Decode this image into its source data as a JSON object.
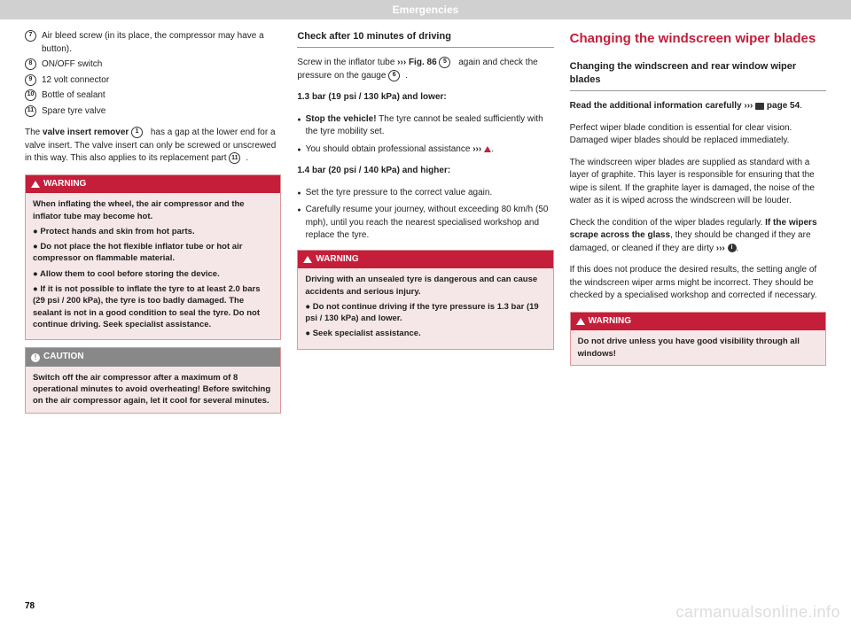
{
  "header": "Emergencies",
  "pageNumber": "78",
  "watermark": "carmanualsonline.info",
  "col1": {
    "items": [
      {
        "n": "7",
        "t": "Air bleed screw (in its place, the compressor may have a button)."
      },
      {
        "n": "8",
        "t": "ON/OFF switch"
      },
      {
        "n": "9",
        "t": "12 volt connector"
      },
      {
        "n": "10",
        "t": "Bottle of sealant"
      },
      {
        "n": "11",
        "t": "Spare tyre valve"
      }
    ],
    "para1a": "The ",
    "para1b": "valve insert remover",
    "para1c": " has a gap at the lower end for a valve insert. The valve insert can only be screwed or unscrewed in this way. This also applies to its replacement part ",
    "insertNum": "1",
    "replaceNum": "11",
    "warn": {
      "title": "WARNING",
      "lines": [
        "When inflating the wheel, the air compressor and the inflator tube may become hot.",
        "Protect hands and skin from hot parts.",
        "Do not place the hot flexible inflator tube or hot air compressor on flammable material.",
        "Allow them to cool before storing the device.",
        "If it is not possible to inflate the tyre to at least 2.0 bars (29 psi / 200 kPa), the tyre is too badly damaged. The sealant is not in a good condition to seal the tyre. Do not continue driving. Seek specialist assistance."
      ]
    },
    "caution": {
      "title": "CAUTION",
      "body": "Switch off the air compressor after a maximum of 8 operational minutes to avoid overheating! Before switching on the air compressor again, let it cool for several minutes."
    }
  },
  "col2": {
    "heading": "Check after 10 minutes of driving",
    "p1a": "Screw in the inflator tube ",
    "p1b": "Fig. 86",
    "p1n1": "5",
    "p1c": " again and check the pressure on the gauge ",
    "p1n2": "6",
    "sub1": "1.3 bar (19 psi / 130 kPa) and lower:",
    "b1a": "Stop the vehicle!",
    "b1b": " The tyre cannot be sealed sufficiently with the tyre mobility set.",
    "b2": "You should obtain professional assistance ",
    "sub2": "1.4 bar (20 psi / 140 kPa) and higher:",
    "b3": "Set the tyre pressure to the correct value again.",
    "b4": "Carefully resume your journey, without exceeding 80 km/h (50 mph), until you reach the nearest specialised workshop and replace the tyre.",
    "warn": {
      "title": "WARNING",
      "lines": [
        "Driving with an unsealed tyre is dangerous and can cause accidents and serious injury.",
        "Do not continue driving if the tyre pressure is 1.3 bar (19 psi / 130 kPa) and lower.",
        "Seek specialist assistance."
      ]
    }
  },
  "col3": {
    "title": "Changing the windscreen wiper blades",
    "heading": "Changing the windscreen and rear window wiper blades",
    "p1": "Read the additional information carefully ",
    "p1ref": "page 54",
    "p2": "Perfect wiper blade condition is essential for clear vision. Damaged wiper blades should be replaced immediately.",
    "p3": "The windscreen wiper blades are supplied as standard with a layer of graphite. This layer is responsible for ensuring that the wipe is silent. If the graphite layer is damaged, the noise of the water as it is wiped across the windscreen will be louder.",
    "p4a": "Check the condition of the wiper blades regularly. ",
    "p4b": "If the wipers scrape across the glass",
    "p4c": ", they should be changed if they are damaged, or cleaned if they are dirty ",
    "p5": "If this does not produce the desired results, the setting angle of the windscreen wiper arms might be incorrect. They should be checked by a specialised workshop and corrected if necessary.",
    "warn": {
      "title": "WARNING",
      "body": "Do not drive unless you have good visibility through all windows!"
    }
  }
}
